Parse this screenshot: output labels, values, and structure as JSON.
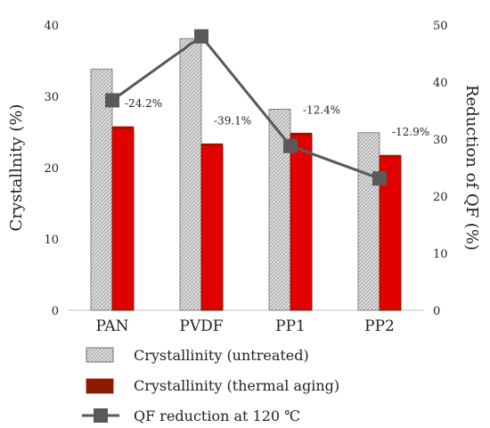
{
  "chart_data": {
    "type": "bar",
    "categories": [
      "PAN",
      "PVDF",
      "PP1",
      "PP2"
    ],
    "series": [
      {
        "name": "Crystallinity (untreated)",
        "axis": "left",
        "kind": "bar",
        "values": [
          33.8,
          38.1,
          28.2,
          24.9
        ]
      },
      {
        "name": "Crystallinity (thermal aging)",
        "axis": "left",
        "kind": "bar",
        "values": [
          25.6,
          23.2,
          24.7,
          21.6
        ]
      },
      {
        "name": "QF reduction at 120 ℃",
        "axis": "right",
        "kind": "line",
        "values": [
          36.8,
          48.0,
          28.8,
          23.1
        ]
      }
    ],
    "data_labels": [
      "-24.2%",
      "-39.1%",
      "-12.4%",
      "-12.9%"
    ],
    "ylabel": "Crystallnity (%)",
    "y2label": "Reduction of QF (%)",
    "ylim": [
      0,
      40
    ],
    "y2lim": [
      0,
      50
    ],
    "yticks": [
      0,
      10,
      20,
      30,
      40
    ],
    "y2ticks": [
      0,
      10,
      20,
      30,
      40,
      50
    ],
    "legend_position": "bottom",
    "colors": {
      "untreated_fill": "#d9d9d9",
      "thermal_fill": "#e00000",
      "thermal_edge": "#8b1a00",
      "line": "#595959"
    }
  }
}
